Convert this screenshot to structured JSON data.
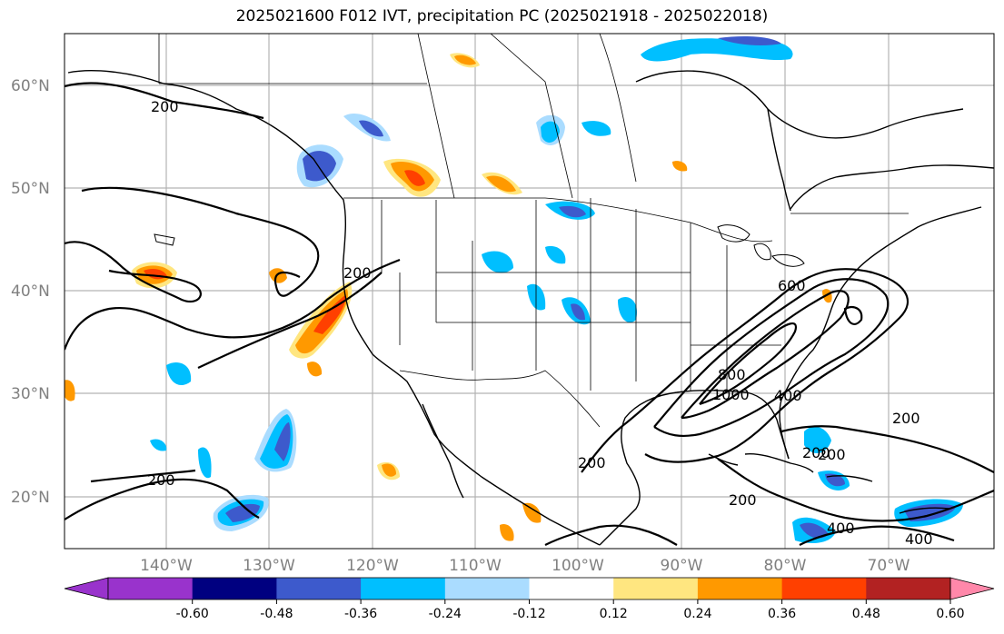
{
  "title": "2025021600 F012 IVT, precipitation PC (2025021918 - 2025022018)",
  "map": {
    "lat_labels": [
      "60°N",
      "50°N",
      "40°N",
      "30°N",
      "20°N"
    ],
    "lon_labels": [
      "140°W",
      "130°W",
      "120°W",
      "110°W",
      "100°W",
      "90°W",
      "80°W",
      "70°W"
    ],
    "contour_labels": [
      "200",
      "200",
      "200",
      "200",
      "200",
      "200",
      "200",
      "200",
      "400",
      "400",
      "400",
      "600",
      "800",
      "1000"
    ]
  },
  "colorbar": {
    "ticks": [
      "-0.60",
      "-0.48",
      "-0.36",
      "-0.24",
      "-0.12",
      "0.12",
      "0.24",
      "0.36",
      "0.48",
      "0.60"
    ],
    "colors": {
      "under": "#9933cc",
      "bins": [
        "#000080",
        "#3d5acc",
        "#00bfff",
        "#aadcff",
        "#ffffff",
        "#ffe680",
        "#ff9900",
        "#ff4000",
        "#b22222"
      ],
      "over": "#ff88aa"
    }
  }
}
